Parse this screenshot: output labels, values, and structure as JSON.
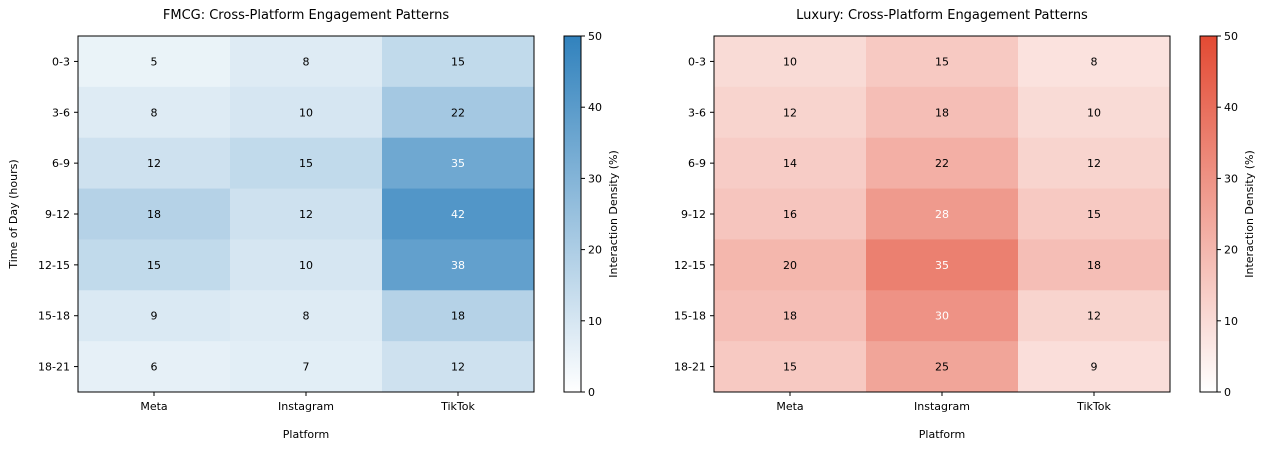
{
  "chart_data": [
    {
      "type": "heatmap",
      "title": "FMCG: Cross-Platform Engagement Patterns",
      "xlabel": "Platform",
      "ylabel": "Time of Day (hours)",
      "x_categories": [
        "Meta",
        "Instagram",
        "TikTok"
      ],
      "y_categories": [
        "0-3",
        "3-6",
        "6-9",
        "9-12",
        "12-15",
        "15-18",
        "18-21"
      ],
      "values": [
        [
          5,
          8,
          15
        ],
        [
          8,
          10,
          22
        ],
        [
          12,
          15,
          35
        ],
        [
          18,
          12,
          42
        ],
        [
          15,
          10,
          38
        ],
        [
          9,
          8,
          18
        ],
        [
          6,
          7,
          12
        ]
      ],
      "colormap": {
        "low": "#ffffff",
        "high": "#3182bd"
      },
      "colorbar": {
        "label": "Interaction Density (%)",
        "range": [
          0,
          50
        ],
        "ticks": [
          0,
          10,
          20,
          30,
          40,
          50
        ]
      },
      "label_color_light": "#ffffff",
      "label_color_dark": "#000000",
      "label_threshold": 30
    },
    {
      "type": "heatmap",
      "title": "Luxury: Cross-Platform Engagement Patterns",
      "xlabel": "Platform",
      "ylabel": "",
      "x_categories": [
        "Meta",
        "Instagram",
        "TikTok"
      ],
      "y_categories": [
        "0-3",
        "3-6",
        "6-9",
        "9-12",
        "12-15",
        "15-18",
        "18-21"
      ],
      "values": [
        [
          10,
          15,
          8
        ],
        [
          12,
          18,
          10
        ],
        [
          14,
          22,
          12
        ],
        [
          16,
          28,
          15
        ],
        [
          20,
          35,
          18
        ],
        [
          18,
          30,
          12
        ],
        [
          15,
          25,
          9
        ]
      ],
      "colormap": {
        "low": "#ffffff",
        "high": "#e34a33"
      },
      "colorbar": {
        "label": "Interaction Density (%)",
        "range": [
          0,
          50
        ],
        "ticks": [
          0,
          10,
          20,
          30,
          40,
          50
        ]
      },
      "label_color_light": "#ffffff",
      "label_color_dark": "#000000",
      "label_threshold": 25
    }
  ]
}
